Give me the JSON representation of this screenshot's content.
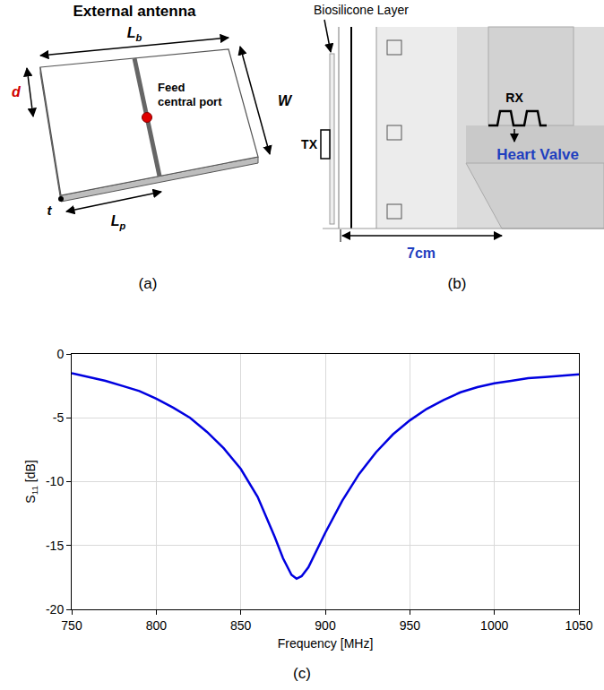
{
  "panel_a": {
    "title": "External antenna",
    "dimensions": {
      "Lb": {
        "text": "L",
        "sub": "b"
      },
      "W": {
        "text": "W"
      },
      "d": {
        "text": "d"
      },
      "t": {
        "text": "t"
      },
      "Lp": {
        "text": "L",
        "sub": "p"
      }
    },
    "feed_label": "Feed central port",
    "caption": "(a)"
  },
  "panel_b": {
    "layer_label": "Biosilicone Layer",
    "tx": "TX",
    "rx": "RX",
    "target": "Heart Valve",
    "distance": "7cm",
    "caption": "(b)"
  },
  "chart_data": {
    "type": "line",
    "caption": "(c)",
    "xlabel": "Frequency [MHz]",
    "ylabel": {
      "base": "S",
      "sub": "11",
      "unit": "[dB]"
    },
    "x": [
      750,
      760,
      770,
      780,
      790,
      800,
      810,
      820,
      830,
      840,
      850,
      860,
      870,
      875,
      880,
      883,
      886,
      890,
      900,
      910,
      920,
      930,
      940,
      950,
      960,
      970,
      980,
      990,
      1000,
      1010,
      1020,
      1030,
      1040,
      1050
    ],
    "values": [
      -1.5,
      -1.8,
      -2.1,
      -2.5,
      -2.9,
      -3.5,
      -4.2,
      -5.0,
      -6.1,
      -7.4,
      -9.0,
      -11.2,
      -14.3,
      -16.0,
      -17.3,
      -17.6,
      -17.4,
      -16.7,
      -14.0,
      -11.5,
      -9.4,
      -7.7,
      -6.3,
      -5.2,
      -4.3,
      -3.6,
      -3.0,
      -2.6,
      -2.3,
      -2.1,
      -1.9,
      -1.8,
      -1.7,
      -1.6
    ],
    "color": "#0000e0",
    "xlim": [
      750,
      1050
    ],
    "xticks": [
      750,
      800,
      850,
      900,
      950,
      1000,
      1050
    ],
    "ylim": [
      -20,
      0
    ],
    "yticks": [
      -20,
      -15,
      -10,
      -5,
      0
    ],
    "grid": true
  }
}
